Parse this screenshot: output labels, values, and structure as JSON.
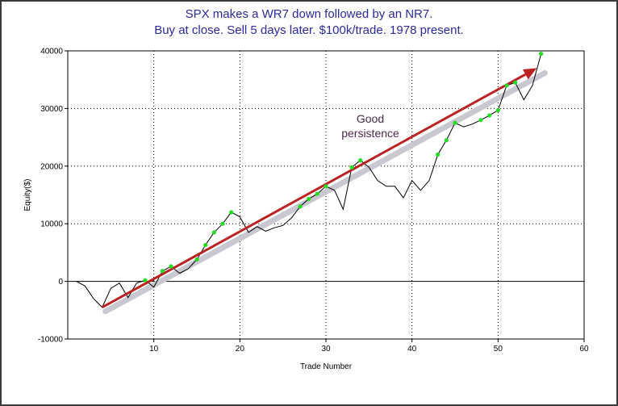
{
  "chart_data": {
    "type": "line",
    "title": "SPX makes a WR7 down followed by an NR7.",
    "subtitle": "Buy at close. Sell 5 days later. $100k/trade. 1978  present.",
    "xlabel": "Trade Number",
    "ylabel": "Equity($)",
    "xlim": [
      0,
      60
    ],
    "ylim": [
      -10000,
      40000
    ],
    "x_ticks": [
      10,
      20,
      30,
      40,
      50,
      60
    ],
    "y_ticks": [
      -10000,
      0,
      10000,
      20000,
      30000,
      40000
    ],
    "grid": true,
    "annotation": [
      "Good",
      "persistence"
    ],
    "colors": {
      "equity_line": "#000000",
      "highs": "#22dd22",
      "trend_arrow": "#bb2222",
      "trend_shadow": "#c8c8d0",
      "title": "#2a2a9a"
    },
    "series": [
      {
        "values": [
          [
            1,
            0
          ],
          [
            2,
            -800
          ],
          [
            3,
            -3000
          ],
          [
            4,
            -4500
          ],
          [
            5,
            -1200
          ],
          [
            6,
            -300
          ],
          [
            7,
            -2800
          ],
          [
            8,
            -300
          ],
          [
            9,
            200
          ],
          [
            10,
            -1000
          ],
          [
            11,
            1800
          ],
          [
            12,
            2600
          ],
          [
            13,
            1400
          ],
          [
            14,
            2200
          ],
          [
            15,
            3800
          ],
          [
            16,
            6300
          ],
          [
            17,
            8500
          ],
          [
            18,
            10000
          ],
          [
            19,
            12000
          ],
          [
            20,
            11200
          ],
          [
            21,
            8500
          ],
          [
            22,
            9500
          ],
          [
            23,
            8700
          ],
          [
            24,
            9300
          ],
          [
            25,
            9700
          ],
          [
            26,
            11000
          ],
          [
            27,
            13000
          ],
          [
            28,
            14300
          ],
          [
            29,
            15200
          ],
          [
            30,
            16500
          ],
          [
            31,
            15800
          ],
          [
            32,
            12500
          ],
          [
            33,
            19800
          ],
          [
            34,
            21000
          ],
          [
            35,
            19800
          ],
          [
            36,
            17500
          ],
          [
            37,
            16500
          ],
          [
            38,
            16500
          ],
          [
            39,
            14500
          ],
          [
            40,
            17500
          ],
          [
            41,
            15800
          ],
          [
            42,
            17500
          ],
          [
            43,
            22000
          ],
          [
            44,
            24500
          ],
          [
            45,
            27500
          ],
          [
            46,
            26800
          ],
          [
            47,
            27300
          ],
          [
            48,
            28000
          ],
          [
            49,
            28800
          ],
          [
            50,
            29700
          ],
          [
            51,
            34000
          ],
          [
            52,
            34500
          ],
          [
            53,
            31500
          ],
          [
            54,
            34000
          ],
          [
            55,
            39500
          ]
        ],
        "new_highs_at_trades": [
          9,
          11,
          12,
          15,
          16,
          17,
          18,
          19,
          27,
          28,
          29,
          30,
          33,
          34,
          43,
          44,
          45,
          48,
          49,
          50,
          51,
          52,
          55
        ]
      }
    ],
    "trend_arrow": {
      "from": [
        4,
        -4500
      ],
      "to": [
        54.5,
        37000
      ]
    }
  }
}
